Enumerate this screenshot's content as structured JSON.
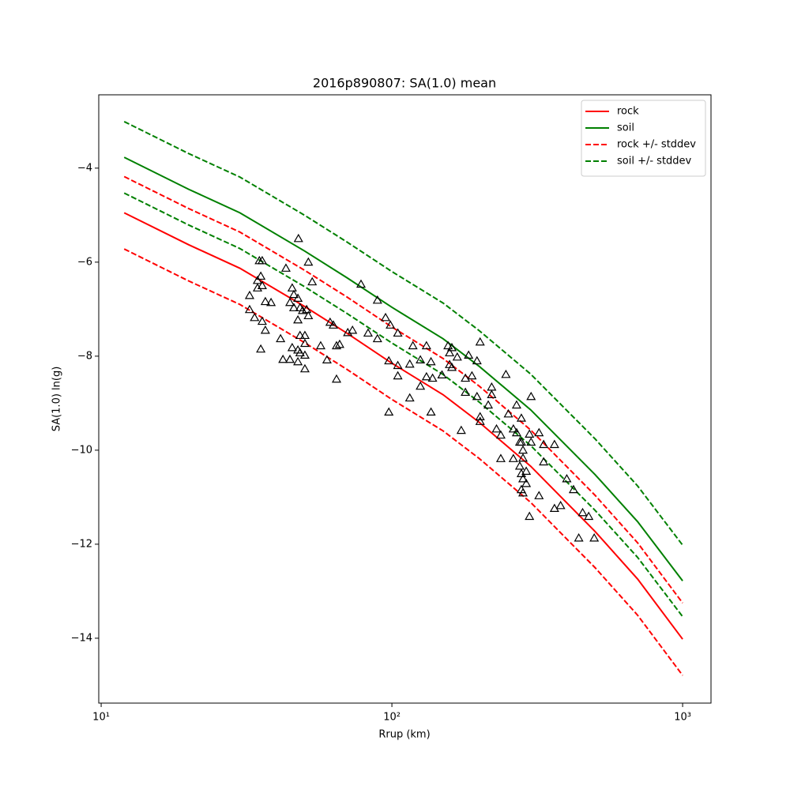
{
  "chart_data": {
    "type": "line",
    "title": "2016p890807: SA(1.0) mean",
    "xlabel": "Rrup (km)",
    "ylabel": "SA(1.0) ln(g)",
    "xscale": "log",
    "xlim": [
      9.81,
      1252
    ],
    "ylim": [
      -15.38,
      -2.44
    ],
    "xticks": [
      {
        "value": 10,
        "label": "10¹"
      },
      {
        "value": 100,
        "label": "10²"
      },
      {
        "value": 1000,
        "label": "10³"
      }
    ],
    "yticks": [
      {
        "value": -14,
        "label": "−14"
      },
      {
        "value": -12,
        "label": "−12"
      },
      {
        "value": -10,
        "label": "−10"
      },
      {
        "value": -8,
        "label": "−8"
      },
      {
        "value": -6,
        "label": "−6"
      },
      {
        "value": -4,
        "label": "−4"
      }
    ],
    "legend": "upper right",
    "x": [
      12,
      20,
      30,
      50,
      70,
      100,
      150,
      200,
      300,
      500,
      700,
      1000
    ],
    "series": [
      {
        "name": "rock",
        "color": "#ff0000",
        "dash": false,
        "values": [
          -4.95,
          -5.63,
          -6.13,
          -6.94,
          -7.51,
          -8.15,
          -8.82,
          -9.41,
          -10.34,
          -11.73,
          -12.74,
          -14.02
        ]
      },
      {
        "name": "soil",
        "color": "#008000",
        "dash": false,
        "values": [
          -3.77,
          -4.45,
          -4.95,
          -5.76,
          -6.33,
          -6.96,
          -7.63,
          -8.22,
          -9.14,
          -10.52,
          -11.52,
          -12.78
        ]
      },
      {
        "name": "rock +/- stddev",
        "color": "#ff0000",
        "dash": true,
        "values": [
          -4.18,
          -4.86,
          -5.36,
          -6.17,
          -6.74,
          -7.38,
          -8.05,
          -8.64,
          -9.57,
          -10.96,
          -11.97,
          -13.25
        ]
      },
      {
        "color": "#ff0000",
        "dash": true,
        "values": [
          -5.72,
          -6.4,
          -6.9,
          -7.71,
          -8.28,
          -8.92,
          -9.59,
          -10.18,
          -11.11,
          -12.5,
          -13.51,
          -14.79
        ]
      },
      {
        "name": "soil +/- stddev",
        "color": "#008000",
        "dash": true,
        "values": [
          -3.01,
          -3.69,
          -4.19,
          -5.0,
          -5.57,
          -6.2,
          -6.87,
          -7.46,
          -8.38,
          -9.76,
          -10.76,
          -12.02
        ]
      },
      {
        "color": "#008000",
        "dash": true,
        "values": [
          -4.53,
          -5.21,
          -5.71,
          -6.52,
          -7.09,
          -7.72,
          -8.39,
          -8.98,
          -9.9,
          -11.28,
          -12.28,
          -13.54
        ]
      }
    ],
    "points": {
      "marker": "triangle",
      "color": "#000000",
      "x": [
        35.0,
        35.8,
        34.5,
        35.4,
        34.5,
        35.8,
        32.4,
        36.7,
        38.4,
        32.4,
        33.7,
        35.8,
        36.7,
        35.4,
        41.4,
        42.2,
        44.6,
        43.2,
        47.7,
        51.6,
        53.2,
        45.4,
        46.0,
        47.5,
        44.6,
        46.0,
        48.3,
        49.3,
        50.9,
        51.6,
        47.5,
        48.3,
        50.2,
        50.2,
        45.4,
        47.5,
        48.3,
        50.2,
        47.5,
        50.2,
        56.9,
        59.8,
        61.3,
        62.9,
        64.5,
        66.1,
        64.5,
        70.5,
        73.2,
        78.3,
        82.8,
        89.2,
        89.2,
        95.1,
        98.8,
        97.6,
        97.6,
        104.8,
        104.8,
        104.8,
        115.2,
        115.2,
        118.1,
        125.3,
        125.3,
        131.5,
        131.5,
        136.3,
        136.3,
        138.0,
        148.7,
        156.0,
        157.9,
        157.9,
        160.8,
        160.8,
        167.8,
        173.2,
        179.0,
        179.0,
        183.6,
        188.5,
        196.2,
        196.2,
        201.1,
        201.1,
        201.1,
        214.5,
        220.4,
        220.4,
        229.0,
        236.9,
        236.9,
        246.7,
        251.6,
        261.7,
        261.7,
        268.5,
        268.5,
        275.3,
        275.3,
        278.8,
        278.8,
        278.8,
        278.8,
        282.4,
        282.4,
        282.4,
        282.4,
        289.8,
        289.8,
        297.3,
        297.3,
        301.1,
        301.1,
        320.6,
        320.6,
        332.6,
        332.6,
        362.4,
        362.4,
        380.4,
        399.5,
        421.4,
        439.3,
        453.0,
        475.3,
        496.5
      ],
      "y": [
        -5.97,
        -5.97,
        -6.39,
        -6.3,
        -6.55,
        -6.5,
        -6.71,
        -6.84,
        -6.86,
        -7.01,
        -7.18,
        -7.26,
        -7.45,
        -7.85,
        -7.63,
        -8.07,
        -8.07,
        -6.13,
        -5.5,
        -6.0,
        -6.42,
        -6.55,
        -6.69,
        -6.77,
        -6.86,
        -6.97,
        -6.97,
        -7.03,
        -7.01,
        -7.14,
        -7.23,
        -7.56,
        -7.56,
        -7.73,
        -7.82,
        -7.87,
        -7.93,
        -7.98,
        -8.12,
        -8.27,
        -7.78,
        -8.08,
        -7.28,
        -7.34,
        -7.78,
        -7.75,
        -8.49,
        -7.5,
        -7.45,
        -6.47,
        -7.51,
        -6.81,
        -7.63,
        -7.18,
        -7.34,
        -8.1,
        -9.19,
        -7.51,
        -8.2,
        -8.42,
        -8.89,
        -8.17,
        -7.78,
        -8.64,
        -8.08,
        -7.78,
        -8.44,
        -9.19,
        -8.12,
        -8.47,
        -8.4,
        -7.78,
        -7.93,
        -8.18,
        -7.82,
        -8.24,
        -8.02,
        -9.58,
        -8.47,
        -8.77,
        -7.98,
        -8.42,
        -8.1,
        -8.86,
        -7.7,
        -9.29,
        -9.39,
        -9.04,
        -8.66,
        -8.82,
        -9.55,
        -9.68,
        -10.18,
        -8.39,
        -9.23,
        -10.18,
        -9.55,
        -9.04,
        -9.63,
        -9.83,
        -10.34,
        -9.32,
        -9.83,
        -10.5,
        -10.84,
        -10.0,
        -10.17,
        -10.61,
        -10.91,
        -10.45,
        -10.71,
        -9.66,
        -11.41,
        -8.86,
        -9.83,
        -9.63,
        -10.97,
        -10.25,
        -9.88,
        -9.88,
        -11.24,
        -11.18,
        -10.61,
        -10.84,
        -11.87,
        -11.33,
        -11.41,
        -11.87
      ]
    }
  }
}
